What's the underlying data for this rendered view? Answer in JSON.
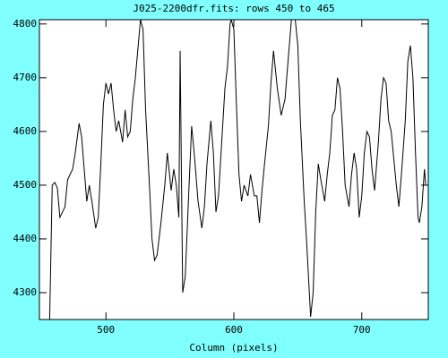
{
  "chart_data": {
    "type": "line",
    "title": "J025-2200dfr.fits: rows 450 to 465",
    "x_label": "Column (pixels)",
    "x": [
      456,
      458,
      460,
      462,
      464,
      466,
      468,
      470,
      474,
      476,
      479,
      481,
      483,
      485,
      487,
      489,
      492,
      494,
      496,
      498,
      500,
      502,
      504,
      506,
      508,
      510,
      513,
      515,
      517,
      519,
      521,
      523,
      527,
      529,
      531,
      534,
      536,
      538,
      540,
      543,
      546,
      548,
      551,
      553,
      555,
      557,
      558,
      560,
      562,
      565,
      567,
      569,
      572,
      575,
      577,
      579,
      582,
      584,
      586,
      588,
      590,
      593,
      595,
      597,
      598,
      600,
      602,
      604,
      606,
      608,
      611,
      613,
      616,
      618,
      620,
      622,
      624,
      627,
      629,
      631,
      634,
      637,
      640,
      642,
      645,
      648,
      650,
      652,
      655,
      657,
      659,
      660,
      662,
      664,
      666,
      668,
      671,
      673,
      675,
      677,
      679,
      681,
      683,
      685,
      687,
      690,
      692,
      694,
      696,
      698,
      700,
      702,
      704,
      706,
      708,
      710,
      713,
      715,
      717,
      719,
      721,
      723,
      725,
      727,
      729,
      731,
      734,
      736,
      738,
      740,
      742,
      744,
      745,
      747,
      749,
      750
    ],
    "series": [
      {
        "color": "#000000",
        "values": [
          4250,
          4500,
          4505,
          4495,
          4440,
          4450,
          4460,
          4510,
          4530,
          4560,
          4615,
          4590,
          4530,
          4470,
          4500,
          4470,
          4420,
          4440,
          4540,
          4650,
          4690,
          4670,
          4690,
          4640,
          4600,
          4620,
          4580,
          4640,
          4590,
          4600,
          4660,
          4700,
          4808,
          4790,
          4640,
          4500,
          4400,
          4360,
          4370,
          4430,
          4500,
          4560,
          4490,
          4530,
          4500,
          4440,
          4750,
          4300,
          4330,
          4500,
          4610,
          4560,
          4470,
          4420,
          4460,
          4540,
          4620,
          4560,
          4450,
          4480,
          4560,
          4680,
          4720,
          4800,
          4808,
          4790,
          4650,
          4520,
          4470,
          4500,
          4480,
          4520,
          4480,
          4480,
          4430,
          4490,
          4540,
          4610,
          4690,
          4750,
          4680,
          4630,
          4660,
          4720,
          4808,
          4808,
          4760,
          4620,
          4470,
          4390,
          4300,
          4255,
          4300,
          4450,
          4540,
          4510,
          4470,
          4520,
          4560,
          4630,
          4640,
          4700,
          4680,
          4600,
          4500,
          4460,
          4520,
          4560,
          4530,
          4440,
          4480,
          4560,
          4600,
          4590,
          4530,
          4490,
          4580,
          4660,
          4700,
          4690,
          4620,
          4600,
          4550,
          4500,
          4460,
          4520,
          4620,
          4730,
          4760,
          4700,
          4560,
          4440,
          4430,
          4460,
          4530,
          4500
        ]
      }
    ],
    "xlim": [
      448,
      752
    ],
    "ylim": [
      4250,
      4808
    ],
    "xticks": [
      500,
      600,
      700
    ],
    "yticks": [
      4300,
      4400,
      4500,
      4600,
      4700,
      4800
    ]
  }
}
